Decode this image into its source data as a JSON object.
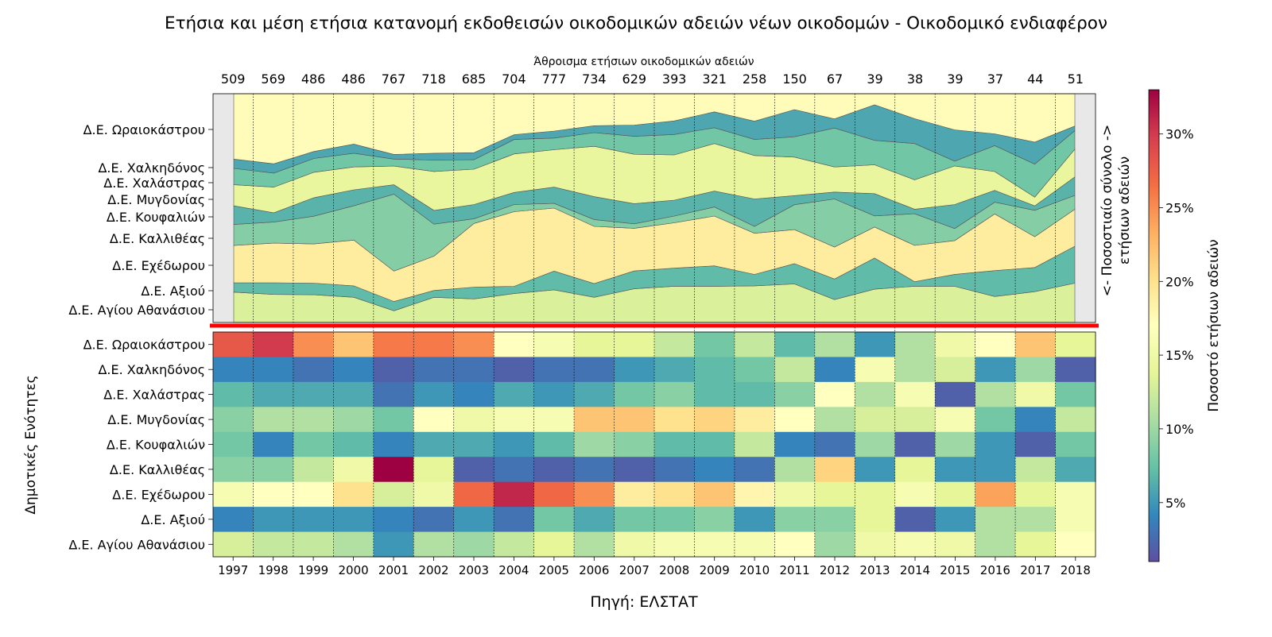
{
  "chart_data": {
    "type": "heatmap",
    "title": "Ετήσια και μέση ετήσια κατανομή εκδοθεισών οικοδομικών αδειών νέων οικοδομών - Οικοδομικό ενδιαφέρον",
    "top_axis_label": "Άθροισμα ετήσιων οικοδομικών αδειών",
    "ylabel": "Δημοτικές Ενότητες",
    "source": "Πηγή: ΕΛΣΤΑΤ",
    "stack_side_label_line1": "<-  Ποσοστιαίο σύνολο  ->",
    "stack_side_label_line2": "ετήσιων αδειών",
    "colorbar_label": "Ποσοστό ετήσιων αδειών",
    "colorbar_ticks": [
      "5%",
      "10%",
      "15%",
      "20%",
      "25%",
      "30%"
    ],
    "colorbar_tick_values": [
      5,
      10,
      15,
      20,
      25,
      30
    ],
    "color_range": [
      1,
      33
    ],
    "years": [
      "1997",
      "1998",
      "1999",
      "2000",
      "2001",
      "2002",
      "2003",
      "2004",
      "2005",
      "2006",
      "2007",
      "2008",
      "2009",
      "2010",
      "2011",
      "2012",
      "2013",
      "2014",
      "2015",
      "2016",
      "2017",
      "2018"
    ],
    "totals": [
      "509",
      "569",
      "486",
      "486",
      "767",
      "718",
      "685",
      "704",
      "777",
      "734",
      "629",
      "393",
      "321",
      "258",
      "150",
      "67",
      "39",
      "38",
      "39",
      "37",
      "44",
      "51"
    ],
    "units": [
      "Δ.Ε. Ωραιοκάστρου",
      "Δ.Ε. Χαλκηδόνος",
      "Δ.Ε. Χαλάστρας",
      "Δ.Ε. Μυγδονίας",
      "Δ.Ε. Κουφαλιών",
      "Δ.Ε. Καλλιθέας",
      "Δ.Ε. Εχέδωρου",
      "Δ.Ε. Αξιού",
      "Δ.Ε. Αγίου Αθανάσιου"
    ],
    "values": [
      [
        28,
        30,
        25,
        22,
        26,
        26,
        25,
        17,
        16,
        14,
        14,
        12,
        8,
        12,
        7,
        11,
        5,
        11,
        15,
        17,
        22,
        14
      ],
      [
        4,
        4,
        3,
        4,
        2,
        3,
        3,
        2,
        3,
        3,
        5,
        6,
        7,
        8,
        12,
        4,
        16,
        11,
        13,
        5,
        10,
        2
      ],
      [
        7,
        6,
        6,
        6,
        3,
        5,
        4,
        6,
        5,
        6,
        8,
        9,
        7,
        7,
        9,
        17,
        11,
        16,
        2,
        11,
        15,
        8
      ],
      [
        9,
        11,
        11,
        10,
        8,
        17,
        15,
        16,
        16,
        22,
        22,
        20,
        21,
        19,
        17,
        11,
        13,
        13,
        16,
        8,
        4,
        12
      ],
      [
        8,
        4,
        8,
        7,
        4,
        6,
        6,
        5,
        7,
        10,
        9,
        7,
        7,
        12,
        4,
        3,
        10,
        2,
        10,
        5,
        2,
        8
      ],
      [
        9,
        9,
        12,
        15,
        33,
        14,
        2,
        3,
        2,
        3,
        2,
        3,
        4,
        3,
        11,
        21,
        5,
        14,
        5,
        5,
        12,
        6
      ],
      [
        16,
        17,
        17,
        20,
        13,
        15,
        27,
        31,
        27,
        25,
        19,
        20,
        22,
        18,
        15,
        14,
        14,
        16,
        14,
        24,
        14,
        16
      ],
      [
        4,
        5,
        5,
        5,
        4,
        3,
        5,
        3,
        8,
        6,
        8,
        8,
        9,
        5,
        9,
        9,
        14,
        2,
        5,
        11,
        11,
        16
      ],
      [
        13,
        12,
        12,
        11,
        5,
        11,
        10,
        12,
        14,
        11,
        15,
        16,
        16,
        16,
        17,
        10,
        15,
        16,
        15,
        11,
        14,
        17
      ]
    ]
  }
}
